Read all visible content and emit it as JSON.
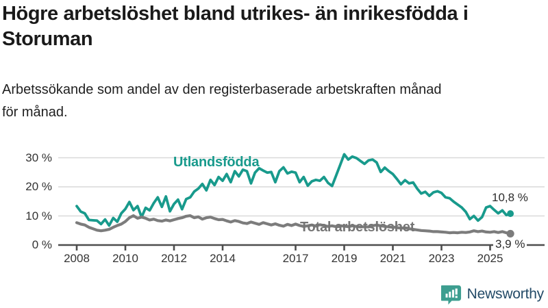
{
  "header": {
    "title_line1": "Högre arbetslöshet bland utrikes- än inrikesfödda i",
    "title_line2": "Storuman",
    "subtitle_line1": "Arbetssökande som andel av den registerbaserade arbetskraften månad",
    "subtitle_line2": "för månad."
  },
  "chart_data": {
    "type": "line",
    "title": "Högre arbetslöshet bland utrikes- än inrikesfödda i Storuman",
    "subtitle": "Arbetssökande som andel av den registerbaserade arbetskraften månad för månad.",
    "unit": "%",
    "x_start_year": 2008,
    "x_step_months": 2,
    "x_tick_labels": [
      "2008",
      "2010",
      "2012",
      "2014",
      "2017",
      "2019",
      "2021",
      "2023",
      "2025"
    ],
    "x_tick_years": [
      2008,
      2010,
      2012,
      2014,
      2017,
      2019,
      2021,
      2023,
      2025
    ],
    "y_tick_labels": [
      "0 %",
      "10 %",
      "20 %",
      "30 %"
    ],
    "y_tick_values": [
      0,
      10,
      20,
      30
    ],
    "ylim": [
      0,
      33
    ],
    "grid": "horizontal",
    "legend_position": "inline-labels",
    "series": [
      {
        "name": "Utlandsfödda",
        "color": "#189a8c",
        "end_label": "10,8 %",
        "end_value": 10.8,
        "values": [
          13.4,
          11.5,
          10.9,
          8.6,
          8.5,
          8.4,
          7.2,
          8.8,
          6.7,
          9.3,
          8.0,
          10.9,
          12.4,
          14.8,
          12.0,
          13.4,
          9.6,
          12.8,
          11.9,
          14.4,
          16.4,
          13.1,
          16.7,
          11.6,
          14.1,
          15.6,
          12.3,
          15.8,
          16.4,
          18.4,
          19.4,
          21.0,
          18.8,
          22.4,
          20.6,
          23.4,
          22.1,
          24.4,
          21.6,
          25.4,
          23.6,
          25.9,
          25.4,
          21.2,
          24.9,
          26.4,
          25.6,
          24.9,
          25.1,
          21.6,
          25.4,
          26.7,
          24.6,
          25.2,
          24.9,
          21.6,
          23.4,
          20.4,
          21.9,
          22.4,
          22.1,
          23.4,
          21.4,
          20.3,
          23.9,
          27.5,
          31.2,
          29.4,
          30.4,
          29.9,
          28.9,
          27.9,
          29.1,
          29.4,
          28.4,
          25.1,
          26.6,
          25.4,
          24.4,
          22.7,
          20.9,
          22.3,
          21.2,
          21.5,
          19.4,
          17.7,
          18.3,
          16.9,
          18.1,
          18.5,
          17.9,
          16.4,
          16.1,
          14.9,
          13.9,
          12.9,
          11.4,
          8.9,
          10.0,
          8.4,
          9.6,
          12.9,
          13.4,
          12.1,
          10.9,
          11.9,
          10.3,
          10.8
        ]
      },
      {
        "name": "Total arbetslöshet",
        "color": "#7c7c7c",
        "end_label": "3,9 %",
        "end_value": 3.9,
        "values": [
          7.7,
          7.2,
          6.9,
          6.1,
          5.6,
          5.1,
          4.9,
          5.1,
          5.4,
          6.1,
          6.7,
          7.2,
          8.1,
          9.4,
          10.1,
          9.2,
          9.6,
          9.2,
          8.6,
          8.9,
          8.4,
          8.2,
          8.6,
          8.3,
          8.7,
          9.1,
          9.4,
          9.9,
          10.1,
          9.4,
          9.7,
          8.9,
          9.4,
          9.6,
          9.1,
          8.7,
          8.8,
          8.3,
          7.9,
          8.4,
          8.1,
          7.6,
          7.4,
          7.9,
          7.5,
          7.1,
          7.7,
          7.3,
          6.9,
          7.3,
          6.8,
          6.5,
          7.1,
          6.7,
          7.2,
          6.7,
          6.4,
          6.6,
          6.9,
          6.5,
          7.0,
          6.7,
          6.4,
          6.6,
          6.3,
          6.6,
          6.5,
          6.3,
          6.6,
          6.4,
          6.2,
          6.3,
          6.2,
          6.6,
          6.9,
          6.6,
          6.4,
          6.2,
          6.2,
          6.0,
          5.8,
          5.9,
          5.6,
          5.4,
          5.2,
          5.0,
          4.9,
          4.8,
          4.6,
          4.6,
          4.5,
          4.4,
          4.2,
          4.3,
          4.2,
          4.4,
          4.3,
          4.5,
          4.9,
          4.6,
          4.8,
          4.5,
          4.4,
          4.6,
          4.3,
          4.6,
          4.2,
          3.9
        ]
      }
    ]
  },
  "annotations": {
    "series1_label": "Utlandsfödda",
    "series1_end": "10,8 %",
    "series2_label": "Total arbetslöshet",
    "series2_end": "3,9 %"
  },
  "footer": {
    "brand": "Newsworthy"
  },
  "colors": {
    "accent_teal": "#189a8c",
    "line_gray": "#7c7c7c",
    "label_gray": "#757575",
    "axis": "#4d4d4d",
    "grid": "#d9d9d9",
    "logo_teal": "#3d9e90",
    "brand_navy": "#234a67"
  }
}
